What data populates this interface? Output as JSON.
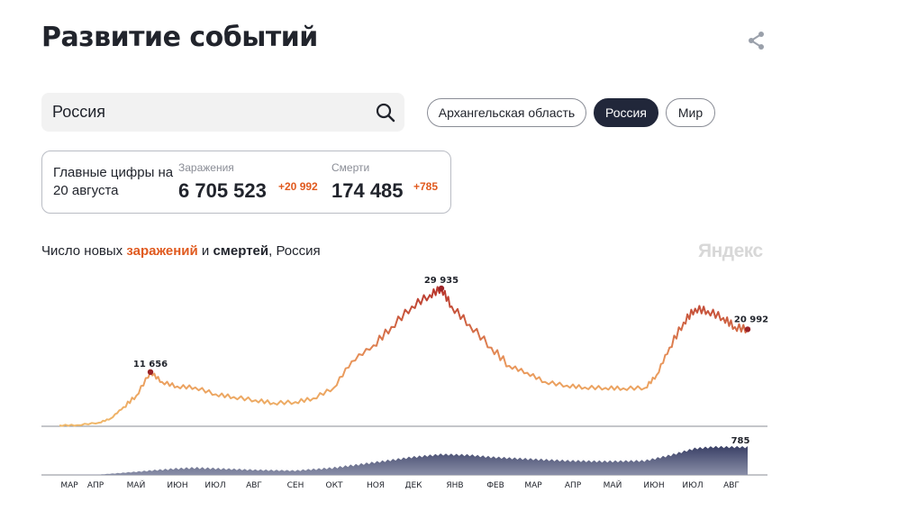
{
  "header": {
    "title": "Развитие событий"
  },
  "search": {
    "value": "Россия"
  },
  "regions": [
    {
      "label": "Архангельская область",
      "active": false
    },
    {
      "label": "Россия",
      "active": true
    },
    {
      "label": "Мир",
      "active": false
    }
  ],
  "stats": {
    "caption": "Главные цифры на 20 августа",
    "infections": {
      "label": "Заражения",
      "value": "6 705 523",
      "delta": "+20 992"
    },
    "deaths": {
      "label": "Смерти",
      "value": "174 485",
      "delta": "+785"
    }
  },
  "chart_caption": {
    "prefix": "Число новых ",
    "infections_word": "заражений",
    "middle": " и ",
    "deaths_word": "смертей",
    "suffix": ", Россия"
  },
  "watermark": "Яндекс",
  "colors": {
    "accent_orange": "#e05a1f",
    "infection_low": "#f0b86a",
    "infection_high": "#b5302a",
    "deaths_fill": "#4a5278",
    "chip_active": "#21273a"
  },
  "icons": {
    "share": "share-icon",
    "search": "search-icon"
  },
  "chart_data": [
    {
      "type": "line",
      "title": "",
      "series": [
        {
          "name": "заражений",
          "x": [
            "2020-03-01",
            "2020-03-15",
            "2020-04-01",
            "2020-04-10",
            "2020-04-20",
            "2020-04-30",
            "2020-05-11",
            "2020-05-20",
            "2020-06-01",
            "2020-06-15",
            "2020-07-01",
            "2020-07-15",
            "2020-08-01",
            "2020-08-15",
            "2020-09-01",
            "2020-09-15",
            "2020-10-01",
            "2020-10-15",
            "2020-11-01",
            "2020-11-15",
            "2020-12-01",
            "2020-12-15",
            "2020-12-24",
            "2021-01-01",
            "2021-01-15",
            "2021-02-01",
            "2021-02-15",
            "2021-03-01",
            "2021-03-15",
            "2021-04-01",
            "2021-04-15",
            "2021-05-01",
            "2021-05-15",
            "2021-06-01",
            "2021-06-10",
            "2021-06-20",
            "2021-07-01",
            "2021-07-10",
            "2021-07-20",
            "2021-08-01",
            "2021-08-10",
            "2021-08-20"
          ],
          "values": [
            0,
            50,
            600,
            1500,
            4000,
            6500,
            11656,
            9500,
            8500,
            8300,
            6800,
            6200,
            5500,
            4900,
            5100,
            5900,
            8200,
            14000,
            17500,
            21500,
            26000,
            28500,
            29935,
            26000,
            22000,
            17000,
            13000,
            11500,
            9500,
            8700,
            8300,
            8200,
            8100,
            8200,
            11000,
            17000,
            22500,
            25500,
            25000,
            23500,
            21500,
            20992
          ]
        },
        {
          "name": "смертей",
          "x": [
            "2020-03-01",
            "2020-04-01",
            "2020-04-20",
            "2020-05-10",
            "2020-06-01",
            "2020-06-15",
            "2020-07-01",
            "2020-08-01",
            "2020-09-01",
            "2020-10-01",
            "2020-11-01",
            "2020-12-01",
            "2020-12-24",
            "2021-01-15",
            "2021-02-01",
            "2021-03-01",
            "2021-04-01",
            "2021-05-01",
            "2021-06-01",
            "2021-06-20",
            "2021-07-10",
            "2021-07-25",
            "2021-08-20"
          ],
          "values": [
            0,
            10,
            60,
            120,
            180,
            200,
            180,
            140,
            120,
            200,
            350,
            500,
            580,
            560,
            500,
            450,
            400,
            380,
            400,
            550,
            750,
            790,
            785
          ]
        }
      ],
      "annotations": [
        {
          "x": "2020-05-11",
          "y": 11656,
          "label": "11 656"
        },
        {
          "x": "2020-12-24",
          "y": 29935,
          "label": "29 935"
        },
        {
          "x": "2021-08-20",
          "y": 20992,
          "label": "20 992"
        },
        {
          "x": "2021-08-20",
          "y": 785,
          "label": "785"
        }
      ],
      "x_tick_labels": [
        "МАР",
        "АПР",
        "МАЙ",
        "ИЮН",
        "ИЮЛ",
        "АВГ",
        "СЕН",
        "ОКТ",
        "НОЯ",
        "ДЕК",
        "ЯНВ",
        "ФЕВ",
        "МАР",
        "АПР",
        "МАЙ",
        "ИЮН",
        "ИЮЛ",
        "АВГ"
      ],
      "xlabel": "",
      "ylabel": "",
      "grid": false
    }
  ]
}
